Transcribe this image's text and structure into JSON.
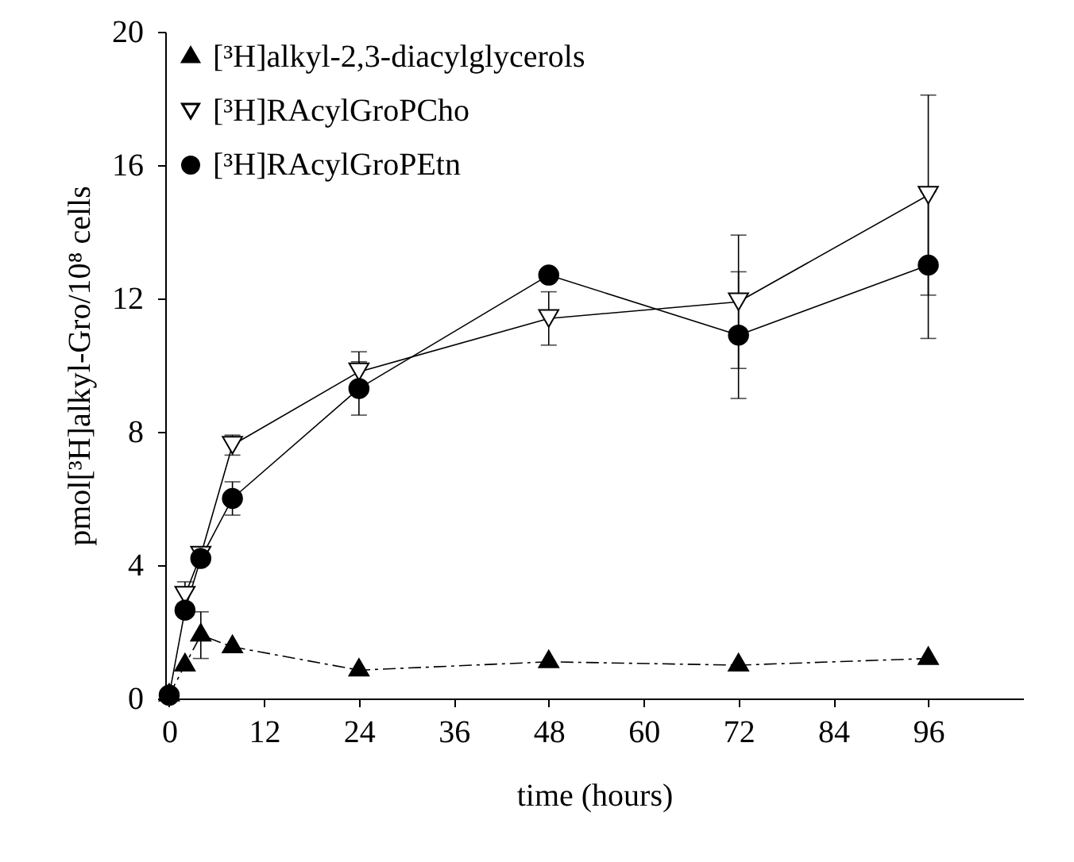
{
  "chart_data": {
    "type": "line",
    "xlabel": "time (hours)",
    "ylabel": "pmol[³H]alkyl-Gro/10⁸ cells",
    "x": [
      0,
      2,
      4,
      8,
      24,
      48,
      72,
      96
    ],
    "xlim": [
      -0.5,
      108
    ],
    "xticks": [
      0,
      12,
      24,
      36,
      48,
      60,
      72,
      84,
      96
    ],
    "ylim": [
      0,
      20
    ],
    "yticks": [
      0,
      4,
      8,
      12,
      16,
      20
    ],
    "grid": false,
    "legend": "top left",
    "series": [
      {
        "name": "[³H]alkyl-2,3-diacylglycerols",
        "color": "#000000",
        "marker": "triangle",
        "line_style": "dashed",
        "values": [
          0.1,
          1.0,
          1.9,
          1.55,
          0.85,
          1.1,
          1.0,
          1.2
        ],
        "errors": [
          null,
          null,
          0.7,
          null,
          null,
          null,
          null,
          null
        ]
      },
      {
        "name": "[³H]RAcylGroPCho",
        "color": "#000000",
        "marker": "triangle-down",
        "line_style": "solid",
        "values": [
          null,
          3.1,
          4.3,
          7.6,
          9.8,
          11.4,
          11.9,
          15.1
        ],
        "errors": [
          null,
          0.4,
          null,
          0.3,
          0.6,
          0.8,
          2.0,
          3.0
        ]
      },
      {
        "name": "[³H]RAcylGroPEtn",
        "color": "#000000",
        "marker": "circle",
        "line_style": "solid",
        "values": [
          0.1,
          2.65,
          4.2,
          6.0,
          9.3,
          12.7,
          10.9,
          13.0
        ],
        "errors": [
          null,
          null,
          null,
          0.5,
          0.8,
          null,
          1.9,
          2.2
        ]
      }
    ]
  }
}
